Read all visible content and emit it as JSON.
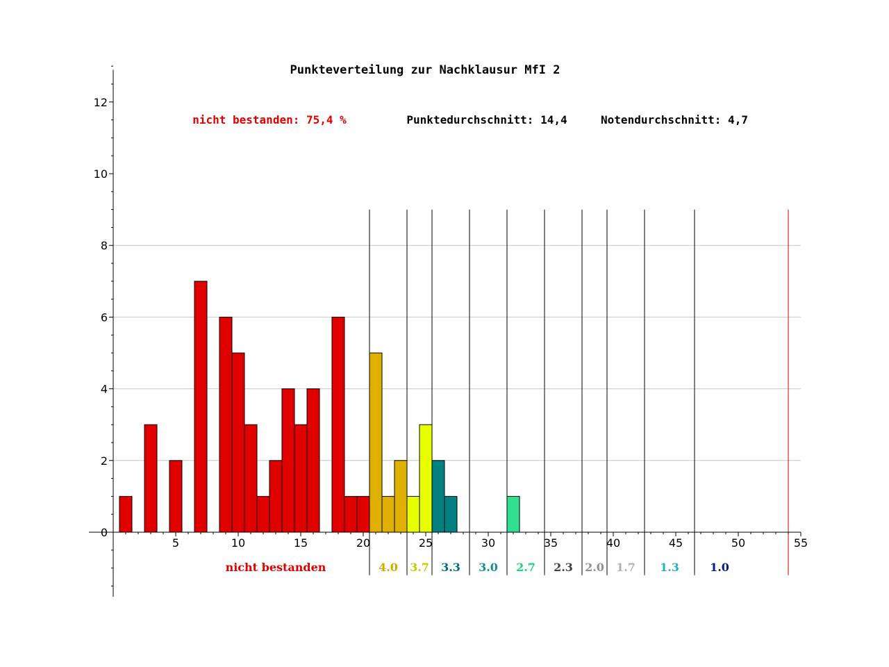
{
  "chart_data": {
    "type": "bar",
    "title": "Punkteverteilung zur Nachklausur MfI 2",
    "stats": {
      "failed": "nicht bestanden: 75,4 %",
      "avg_points": "Punktedurchschnitt: 14,4",
      "avg_grade": "Notendurchschnitt: 4,7"
    },
    "xlim": [
      0,
      55
    ],
    "ylim": [
      -2,
      13
    ],
    "x_ticks": [
      5,
      10,
      15,
      20,
      25,
      30,
      35,
      40,
      45,
      50,
      55
    ],
    "x_tick_labels": [
      "5",
      "10",
      "15",
      "20",
      "25",
      "30",
      "35",
      "40",
      "45",
      "50",
      "55"
    ],
    "y_ticks": [
      0,
      2,
      4,
      6,
      8,
      10,
      12
    ],
    "y_tick_labels": [
      "0",
      "2",
      "4",
      "6",
      "8",
      "10",
      "12"
    ],
    "gridlines_y": [
      2,
      4,
      6,
      8
    ],
    "grid": true,
    "bars": [
      {
        "x": 1,
        "value": 1,
        "color": "#e00000"
      },
      {
        "x": 3,
        "value": 3,
        "color": "#e00000"
      },
      {
        "x": 5,
        "value": 2,
        "color": "#e00000"
      },
      {
        "x": 7,
        "value": 7,
        "color": "#e00000"
      },
      {
        "x": 9,
        "value": 6,
        "color": "#e00000"
      },
      {
        "x": 10,
        "value": 5,
        "color": "#e00000"
      },
      {
        "x": 11,
        "value": 3,
        "color": "#e00000"
      },
      {
        "x": 12,
        "value": 1,
        "color": "#e00000"
      },
      {
        "x": 13,
        "value": 2,
        "color": "#e00000"
      },
      {
        "x": 14,
        "value": 4,
        "color": "#e00000"
      },
      {
        "x": 15,
        "value": 3,
        "color": "#e00000"
      },
      {
        "x": 16,
        "value": 4,
        "color": "#e00000"
      },
      {
        "x": 18,
        "value": 6,
        "color": "#e00000"
      },
      {
        "x": 19,
        "value": 1,
        "color": "#e00000"
      },
      {
        "x": 20,
        "value": 1,
        "color": "#e00000"
      },
      {
        "x": 21,
        "value": 5,
        "color": "#e0b000"
      },
      {
        "x": 22,
        "value": 1,
        "color": "#e0b000"
      },
      {
        "x": 23,
        "value": 2,
        "color": "#e0b000"
      },
      {
        "x": 24,
        "value": 1,
        "color": "#e8ff00"
      },
      {
        "x": 25,
        "value": 3,
        "color": "#e8ff00"
      },
      {
        "x": 26,
        "value": 2,
        "color": "#008080"
      },
      {
        "x": 27,
        "value": 1,
        "color": "#008080"
      },
      {
        "x": 32,
        "value": 1,
        "color": "#30e090"
      }
    ],
    "grade_boundaries": [
      20.5,
      23.5,
      25.5,
      28.5,
      31.5,
      34.5,
      37.5,
      39.5,
      42.5,
      46.5
    ],
    "max_points_line": {
      "x": 54,
      "color": "#cc0000"
    },
    "fail_label": {
      "text": "nicht bestanden",
      "color": "#e00000",
      "x_center": 13
    },
    "grade_labels": [
      {
        "text": "4.0",
        "x_center": 22.0,
        "color": "#d4a800"
      },
      {
        "text": "3.7",
        "x_center": 24.5,
        "color": "#c8c800"
      },
      {
        "text": "3.3",
        "x_center": 27.0,
        "color": "#007070"
      },
      {
        "text": "3.0",
        "x_center": 30.0,
        "color": "#109090"
      },
      {
        "text": "2.7",
        "x_center": 33.0,
        "color": "#20d080"
      },
      {
        "text": "2.3",
        "x_center": 36.0,
        "color": "#404040"
      },
      {
        "text": "2.0",
        "x_center": 38.5,
        "color": "#909090"
      },
      {
        "text": "1.7",
        "x_center": 41.0,
        "color": "#b0b0b0"
      },
      {
        "text": "1.3",
        "x_center": 44.5,
        "color": "#20b0c0"
      },
      {
        "text": "1.0",
        "x_center": 48.5,
        "color": "#002080"
      }
    ]
  }
}
